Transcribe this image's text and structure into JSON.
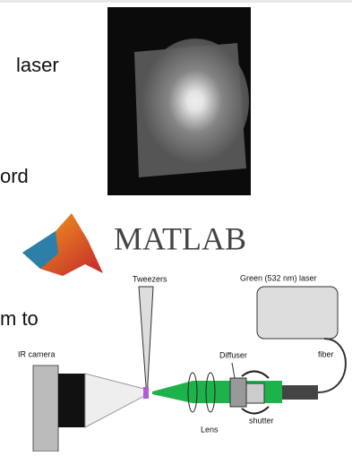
{
  "slide_text": {
    "line1": "laser",
    "line2": "ord",
    "line3": "m to"
  },
  "logo": {
    "text": "MATLAB"
  },
  "diagram": {
    "tweezers": "Tweezers",
    "laser": "Green (532 nm) laser",
    "diffuser": "Diffuser",
    "fiber": "fiber",
    "camera": "IR camera",
    "lens": "Lens",
    "shutter": "shutter"
  }
}
